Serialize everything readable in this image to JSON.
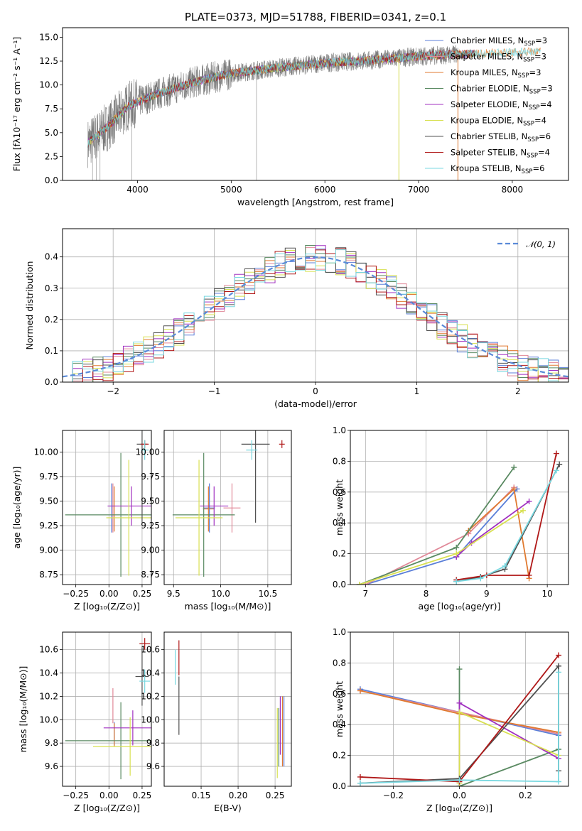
{
  "figure": {
    "title": "PLATE=0373, MJD=51788, FIBERID=0341, z=0.1"
  },
  "legend": [
    {
      "label": "Chabrier MILES, N",
      "sub": "SSP",
      "suffix": "=3",
      "color": "#5b7fd8"
    },
    {
      "label": "Salpeter MILES, N",
      "sub": "SSP",
      "suffix": "=3",
      "color": "#e08898"
    },
    {
      "label": "Kroupa MILES, N",
      "sub": "SSP",
      "suffix": "=3",
      "color": "#e07a30"
    },
    {
      "label": "Chabrier ELODIE, N",
      "sub": "SSP",
      "suffix": "=3",
      "color": "#5a8a62"
    },
    {
      "label": "Salpeter ELODIE, N",
      "sub": "SSP",
      "suffix": "=4",
      "color": "#a030c0"
    },
    {
      "label": "Kroupa ELODIE, N",
      "sub": "SSP",
      "suffix": "=4",
      "color": "#d8e050"
    },
    {
      "label": "Chabrier STELIB, N",
      "sub": "SSP",
      "suffix": "=6",
      "color": "#505050"
    },
    {
      "label": "Salpeter STELIB, N",
      "sub": "SSP",
      "suffix": "=4",
      "color": "#b01818"
    },
    {
      "label": "Kroupa STELIB, N",
      "sub": "SSP",
      "suffix": "=6",
      "color": "#78d8e0"
    }
  ],
  "hist_legend": "𝒩(0, 1)",
  "chart_data": [
    {
      "type": "line",
      "title": "PLATE=0373, MJD=51788, FIBERID=0341, z=0.1",
      "xlabel": "wavelength [Angstrom, rest frame]",
      "ylabel": "Flux [fλ10⁻¹⁷ erg cm⁻² s⁻¹ A⁻¹]",
      "xlim": [
        3200,
        8600
      ],
      "ylim": [
        0,
        16
      ],
      "xticks": [
        4000,
        5000,
        6000,
        7000,
        8000
      ],
      "yticks": [
        0.0,
        2.5,
        5.0,
        7.5,
        10.0,
        12.5,
        15.0
      ],
      "data_trend": {
        "x": [
          3470,
          3700,
          3900,
          4200,
          4600,
          5000,
          5500,
          6000,
          6500,
          7000,
          7400,
          8000,
          8300
        ],
        "y": [
          3.9,
          5.8,
          7.8,
          9.0,
          10.3,
          11.2,
          11.8,
          12.3,
          12.6,
          13.0,
          13.2,
          13.4,
          13.5
        ]
      },
      "grid": false
    },
    {
      "type": "line",
      "xlabel": "(data-model)/error",
      "ylabel": "Normed distribution",
      "xlim": [
        -2.5,
        2.5
      ],
      "ylim": [
        0,
        0.49
      ],
      "xticks": [
        -2,
        -1,
        0,
        1,
        2
      ],
      "yticks": [
        0.0,
        0.1,
        0.2,
        0.3,
        0.4
      ],
      "series_name": "𝒩(0, 1)",
      "bin_width": 0.1,
      "grid": true
    },
    {
      "type": "scatter",
      "xlabel": "Z [log₁₀(Z/Z⊙)]",
      "ylabel": "age  [log₁₀(age/yr)]",
      "xlim": [
        -0.35,
        0.32
      ],
      "ylim": [
        8.65,
        10.22
      ],
      "xticks": [
        -0.25,
        0.0,
        0.25
      ],
      "yticks": [
        8.75,
        9.0,
        9.25,
        9.5,
        9.75,
        10.0
      ],
      "points": [
        {
          "x": 0.02,
          "y": 9.43,
          "xerr": 0.0,
          "yerr": 0.25,
          "series": 0
        },
        {
          "x": 0.03,
          "y": 9.43,
          "xerr": 0.0,
          "yerr": 0.25,
          "series": 1
        },
        {
          "x": 0.04,
          "y": 9.42,
          "xerr": 0.0,
          "yerr": 0.23,
          "series": 2
        },
        {
          "x": 0.09,
          "y": 9.36,
          "xerr": 0.42,
          "yerr": 0.63,
          "series": 3
        },
        {
          "x": 0.17,
          "y": 9.45,
          "xerr": 0.18,
          "yerr": 0.2,
          "series": 4
        },
        {
          "x": 0.15,
          "y": 9.33,
          "xerr": 0.17,
          "yerr": 0.59,
          "series": 5
        },
        {
          "x": 0.25,
          "y": 10.08,
          "xerr": 0.04,
          "yerr": 0.8,
          "series": 6
        },
        {
          "x": 0.27,
          "y": 10.08,
          "xerr": 0.03,
          "yerr": 0.04,
          "series": 7
        },
        {
          "x": 0.27,
          "y": 10.02,
          "xerr": 0.03,
          "yerr": 0.1,
          "series": 8
        }
      ],
      "grid": true
    },
    {
      "type": "scatter",
      "xlabel": "mass [log₁₀(M/M⊙)]",
      "ylabel": "",
      "xlim": [
        9.4,
        10.75
      ],
      "ylim": [
        8.65,
        10.22
      ],
      "xticks": [
        9.5,
        10.0,
        10.5
      ],
      "yticks": [
        8.75,
        9.0,
        9.25,
        9.5,
        9.75,
        10.0
      ],
      "grid": true
    },
    {
      "type": "line",
      "xlabel": "age  [log₁₀(age/yr)]",
      "ylabel": "mass weight",
      "xlim": [
        6.75,
        10.35
      ],
      "ylim": [
        0,
        1
      ],
      "xticks": [
        7,
        8,
        9,
        10
      ],
      "yticks": [
        0.0,
        0.2,
        0.4,
        0.6,
        0.8,
        1.0
      ],
      "series": [
        {
          "name": "Chabrier MILES",
          "x": [
            7.0,
            8.5,
            9.5
          ],
          "y": [
            0.0,
            0.18,
            0.62
          ]
        },
        {
          "name": "Salpeter MILES",
          "x": [
            7.0,
            8.7,
            9.45
          ],
          "y": [
            0.0,
            0.33,
            0.63
          ]
        },
        {
          "name": "Kroupa MILES",
          "x": [
            8.7,
            9.45,
            9.7
          ],
          "y": [
            0.35,
            0.62,
            0.04
          ]
        },
        {
          "name": "Chabrier ELODIE",
          "x": [
            6.9,
            8.5,
            9.45
          ],
          "y": [
            0.0,
            0.24,
            0.76
          ]
        },
        {
          "name": "Salpeter ELODIE",
          "x": [
            8.5,
            8.75,
            9.7
          ],
          "y": [
            0.18,
            0.27,
            0.54
          ]
        },
        {
          "name": "Kroupa ELODIE",
          "x": [
            6.9,
            8.5,
            9.6
          ],
          "y": [
            0.0,
            0.2,
            0.48
          ]
        },
        {
          "name": "Chabrier STELIB",
          "x": [
            8.5,
            8.9,
            9.3,
            10.2
          ],
          "y": [
            0.02,
            0.05,
            0.1,
            0.78
          ]
        },
        {
          "name": "Salpeter STELIB",
          "x": [
            8.5,
            9.0,
            9.7,
            10.15
          ],
          "y": [
            0.03,
            0.06,
            0.06,
            0.85
          ]
        },
        {
          "name": "Kroupa STELIB",
          "x": [
            8.5,
            8.9,
            9.3,
            10.15
          ],
          "y": [
            0.02,
            0.04,
            0.12,
            0.74
          ]
        }
      ],
      "grid": true
    },
    {
      "type": "scatter",
      "xlabel": "Z [log₁₀(Z/Z⊙)]",
      "ylabel": "mass [log₁₀(M/M⊙)]",
      "xlim": [
        -0.35,
        0.32
      ],
      "ylim": [
        9.43,
        10.75
      ],
      "xticks": [
        -0.25,
        0.0,
        0.25
      ],
      "yticks": [
        9.6,
        9.8,
        10.0,
        10.2,
        10.4,
        10.6
      ],
      "points": [
        {
          "x": 0.04,
          "y": 9.88,
          "xerr": 0.0,
          "yerr": 0.1,
          "series": 0
        },
        {
          "x": 0.03,
          "y": 10.12,
          "xerr": 0.0,
          "yerr": 0.15,
          "series": 1
        },
        {
          "x": 0.04,
          "y": 9.87,
          "xerr": 0.0,
          "yerr": 0.1,
          "series": 2
        },
        {
          "x": 0.09,
          "y": 9.82,
          "xerr": 0.42,
          "yerr": 0.33,
          "series": 3
        },
        {
          "x": 0.18,
          "y": 9.93,
          "xerr": 0.22,
          "yerr": 0.15,
          "series": 4
        },
        {
          "x": 0.16,
          "y": 9.77,
          "xerr": 0.28,
          "yerr": 0.25,
          "series": 5
        },
        {
          "x": 0.25,
          "y": 10.37,
          "xerr": 0.05,
          "yerr": 0.25,
          "series": 6
        },
        {
          "x": 0.27,
          "y": 10.65,
          "xerr": 0.04,
          "yerr": 0.05,
          "series": 7
        },
        {
          "x": 0.27,
          "y": 10.33,
          "xerr": 0.04,
          "yerr": 0.1,
          "series": 8
        }
      ],
      "grid": true
    },
    {
      "type": "scatter",
      "xlabel": "E(B-V)",
      "ylabel": "",
      "xlim": [
        0.1,
        0.272
      ],
      "ylim": [
        9.43,
        10.75
      ],
      "xticks": [
        0.15,
        0.2,
        0.25
      ],
      "yticks": [
        9.6,
        9.8,
        10.0,
        10.2,
        10.4,
        10.6
      ],
      "points": [
        {
          "x": 0.115,
          "y": 10.45,
          "yerr": 0.15,
          "series": 8
        },
        {
          "x": 0.12,
          "y": 10.53,
          "yerr": 0.15,
          "series": 7
        },
        {
          "x": 0.12,
          "y": 10.12,
          "yerr": 0.25,
          "series": 6
        },
        {
          "x": 0.253,
          "y": 9.8,
          "yerr": 0.3,
          "series": 5
        },
        {
          "x": 0.255,
          "y": 9.85,
          "yerr": 0.25,
          "series": 3
        },
        {
          "x": 0.257,
          "y": 9.95,
          "yerr": 0.25,
          "series": 4
        },
        {
          "x": 0.26,
          "y": 9.9,
          "yerr": 0.3,
          "series": 1
        },
        {
          "x": 0.262,
          "y": 9.9,
          "yerr": 0.3,
          "series": 0
        },
        {
          "x": 0.26,
          "y": 9.9,
          "yerr": 0.3,
          "series": 2
        }
      ],
      "grid": true
    },
    {
      "type": "line",
      "xlabel": "Z [log₁₀(Z/Z⊙)]",
      "ylabel": "mass weight",
      "xlim": [
        -0.33,
        0.33
      ],
      "ylim": [
        0,
        1
      ],
      "xticks": [
        -0.2,
        0.0,
        0.2
      ],
      "yticks": [
        0.0,
        0.2,
        0.4,
        0.6,
        0.8,
        1.0
      ],
      "series": [
        {
          "name": "Chabrier MILES",
          "x": [
            -0.3,
            0.0,
            0.3
          ],
          "y": [
            0.63,
            0.48,
            0.33
          ]
        },
        {
          "name": "Salpeter MILES",
          "x": [
            -0.3,
            0.0,
            0.3
          ],
          "y": [
            0.62,
            0.48,
            0.34
          ]
        },
        {
          "name": "Kroupa MILES",
          "x": [
            -0.3,
            0.0,
            0.3
          ],
          "y": [
            0.62,
            0.47,
            0.35
          ]
        },
        {
          "name": "Chabrier ELODIE",
          "x": [
            0.0,
            0.0,
            0.3,
            0.3
          ],
          "y": [
            0.76,
            0.0,
            0.24,
            0.24
          ]
        },
        {
          "name": "Salpeter ELODIE",
          "x": [
            0.0,
            0.0,
            0.3
          ],
          "y": [
            0.05,
            0.54,
            0.18
          ]
        },
        {
          "name": "Kroupa ELODIE",
          "x": [
            0.0,
            0.0,
            0.3
          ],
          "y": [
            0.02,
            0.48,
            0.2
          ]
        },
        {
          "name": "Chabrier STELIB",
          "x": [
            -0.3,
            0.0,
            0.3,
            0.3
          ],
          "y": [
            0.02,
            0.05,
            0.78,
            0.1
          ]
        },
        {
          "name": "Salpeter STELIB",
          "x": [
            -0.3,
            0.0,
            0.3
          ],
          "y": [
            0.06,
            0.03,
            0.85
          ]
        },
        {
          "name": "Kroupa STELIB",
          "x": [
            -0.3,
            0.0,
            0.3,
            0.3
          ],
          "y": [
            0.02,
            0.04,
            0.03,
            0.74
          ]
        }
      ],
      "grid": true
    }
  ]
}
